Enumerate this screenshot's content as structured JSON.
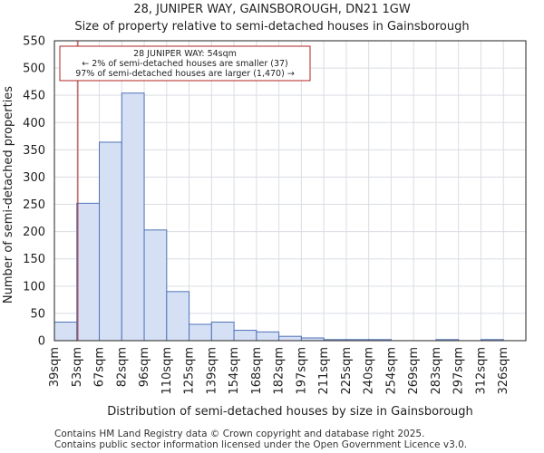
{
  "chart_data": {
    "type": "bar",
    "title_line1": "28, JUNIPER WAY, GAINSBOROUGH, DN21 1GW",
    "title_line2": "Size of property relative to semi-detached houses in Gainsborough",
    "xlabel": "Distribution of semi-detached houses by size in Gainsborough",
    "ylabel": "Number of semi-detached properties",
    "ylim": [
      0,
      550
    ],
    "yticks": [
      0,
      50,
      100,
      150,
      200,
      250,
      300,
      350,
      400,
      450,
      500,
      550
    ],
    "categories": [
      "39sqm",
      "53sqm",
      "67sqm",
      "82sqm",
      "96sqm",
      "110sqm",
      "125sqm",
      "139sqm",
      "154sqm",
      "168sqm",
      "182sqm",
      "197sqm",
      "211sqm",
      "225sqm",
      "240sqm",
      "254sqm",
      "269sqm",
      "283sqm",
      "297sqm",
      "312sqm",
      "326sqm"
    ],
    "values": [
      34,
      252,
      364,
      454,
      203,
      90,
      30,
      34,
      19,
      16,
      8,
      5,
      2,
      2,
      2,
      0,
      0,
      2,
      0,
      2,
      0
    ],
    "marker": {
      "value_sqm": 54,
      "color": "#b22222",
      "annotation_lines": [
        "28 JUNIPER WAY: 54sqm",
        "← 2% of semi-detached houses are smaller (37)",
        "97% of semi-detached houses are larger (1,470) →"
      ]
    },
    "colors": {
      "bar_fill": "#d6e0f5",
      "bar_edge": "#4f72b8"
    }
  },
  "footer": {
    "line1": "Contains HM Land Registry data © Crown copyright and database right 2025.",
    "line2": "Contains public sector information licensed under the Open Government Licence v3.0."
  }
}
